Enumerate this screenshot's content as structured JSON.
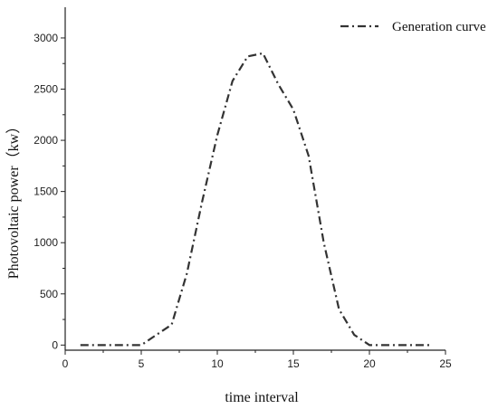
{
  "chart_data": {
    "type": "line",
    "title": "",
    "xlabel": "time interval",
    "ylabel": "Photovoltaic power（kw）",
    "xlim": [
      0,
      25
    ],
    "ylim": [
      -50,
      3300
    ],
    "xticks": [
      0,
      5,
      10,
      15,
      20,
      25
    ],
    "yticks": [
      0,
      500,
      1000,
      1500,
      2000,
      2500,
      3000
    ],
    "grid": false,
    "legend_position": "top-right",
    "series": [
      {
        "name": "Generation curve",
        "line_style": "dash-dot",
        "color": "#333333",
        "x": [
          1,
          2,
          3,
          4,
          5,
          6,
          7,
          8,
          9,
          10,
          11,
          12,
          13,
          14,
          15,
          16,
          17,
          18,
          19,
          20,
          21,
          22,
          23,
          24
        ],
        "y": [
          0,
          0,
          0,
          0,
          0,
          100,
          200,
          700,
          1400,
          2050,
          2580,
          2820,
          2850,
          2550,
          2300,
          1850,
          1000,
          350,
          100,
          0,
          0,
          0,
          0,
          0
        ]
      }
    ]
  }
}
